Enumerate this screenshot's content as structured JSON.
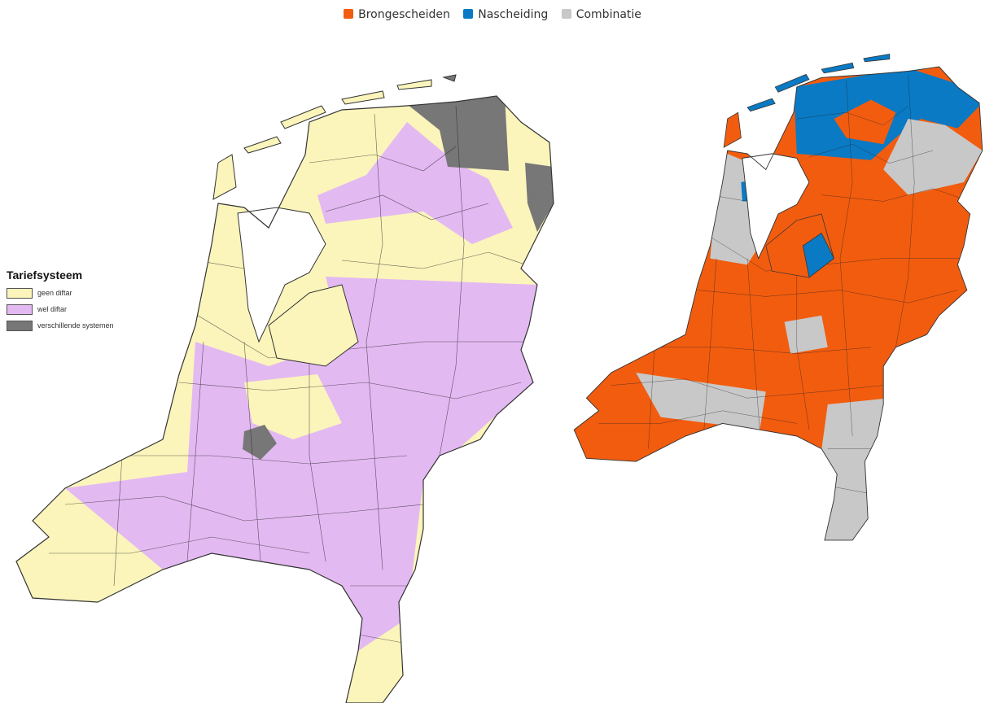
{
  "legend_top": {
    "items": [
      {
        "label": "Brongescheiden",
        "color": "#f25c0f"
      },
      {
        "label": "Nascheiding",
        "color": "#0a7ac4"
      },
      {
        "label": "Combinatie",
        "color": "#c8c8c8"
      }
    ]
  },
  "legend_left": {
    "title": "Tariefsysteem",
    "items": [
      {
        "label": "geen diftar",
        "color": "#fbf5bb"
      },
      {
        "label": "wel diftar",
        "color": "#e3b9f2"
      },
      {
        "label": "verschillende systemen",
        "color": "#777777"
      }
    ]
  }
}
